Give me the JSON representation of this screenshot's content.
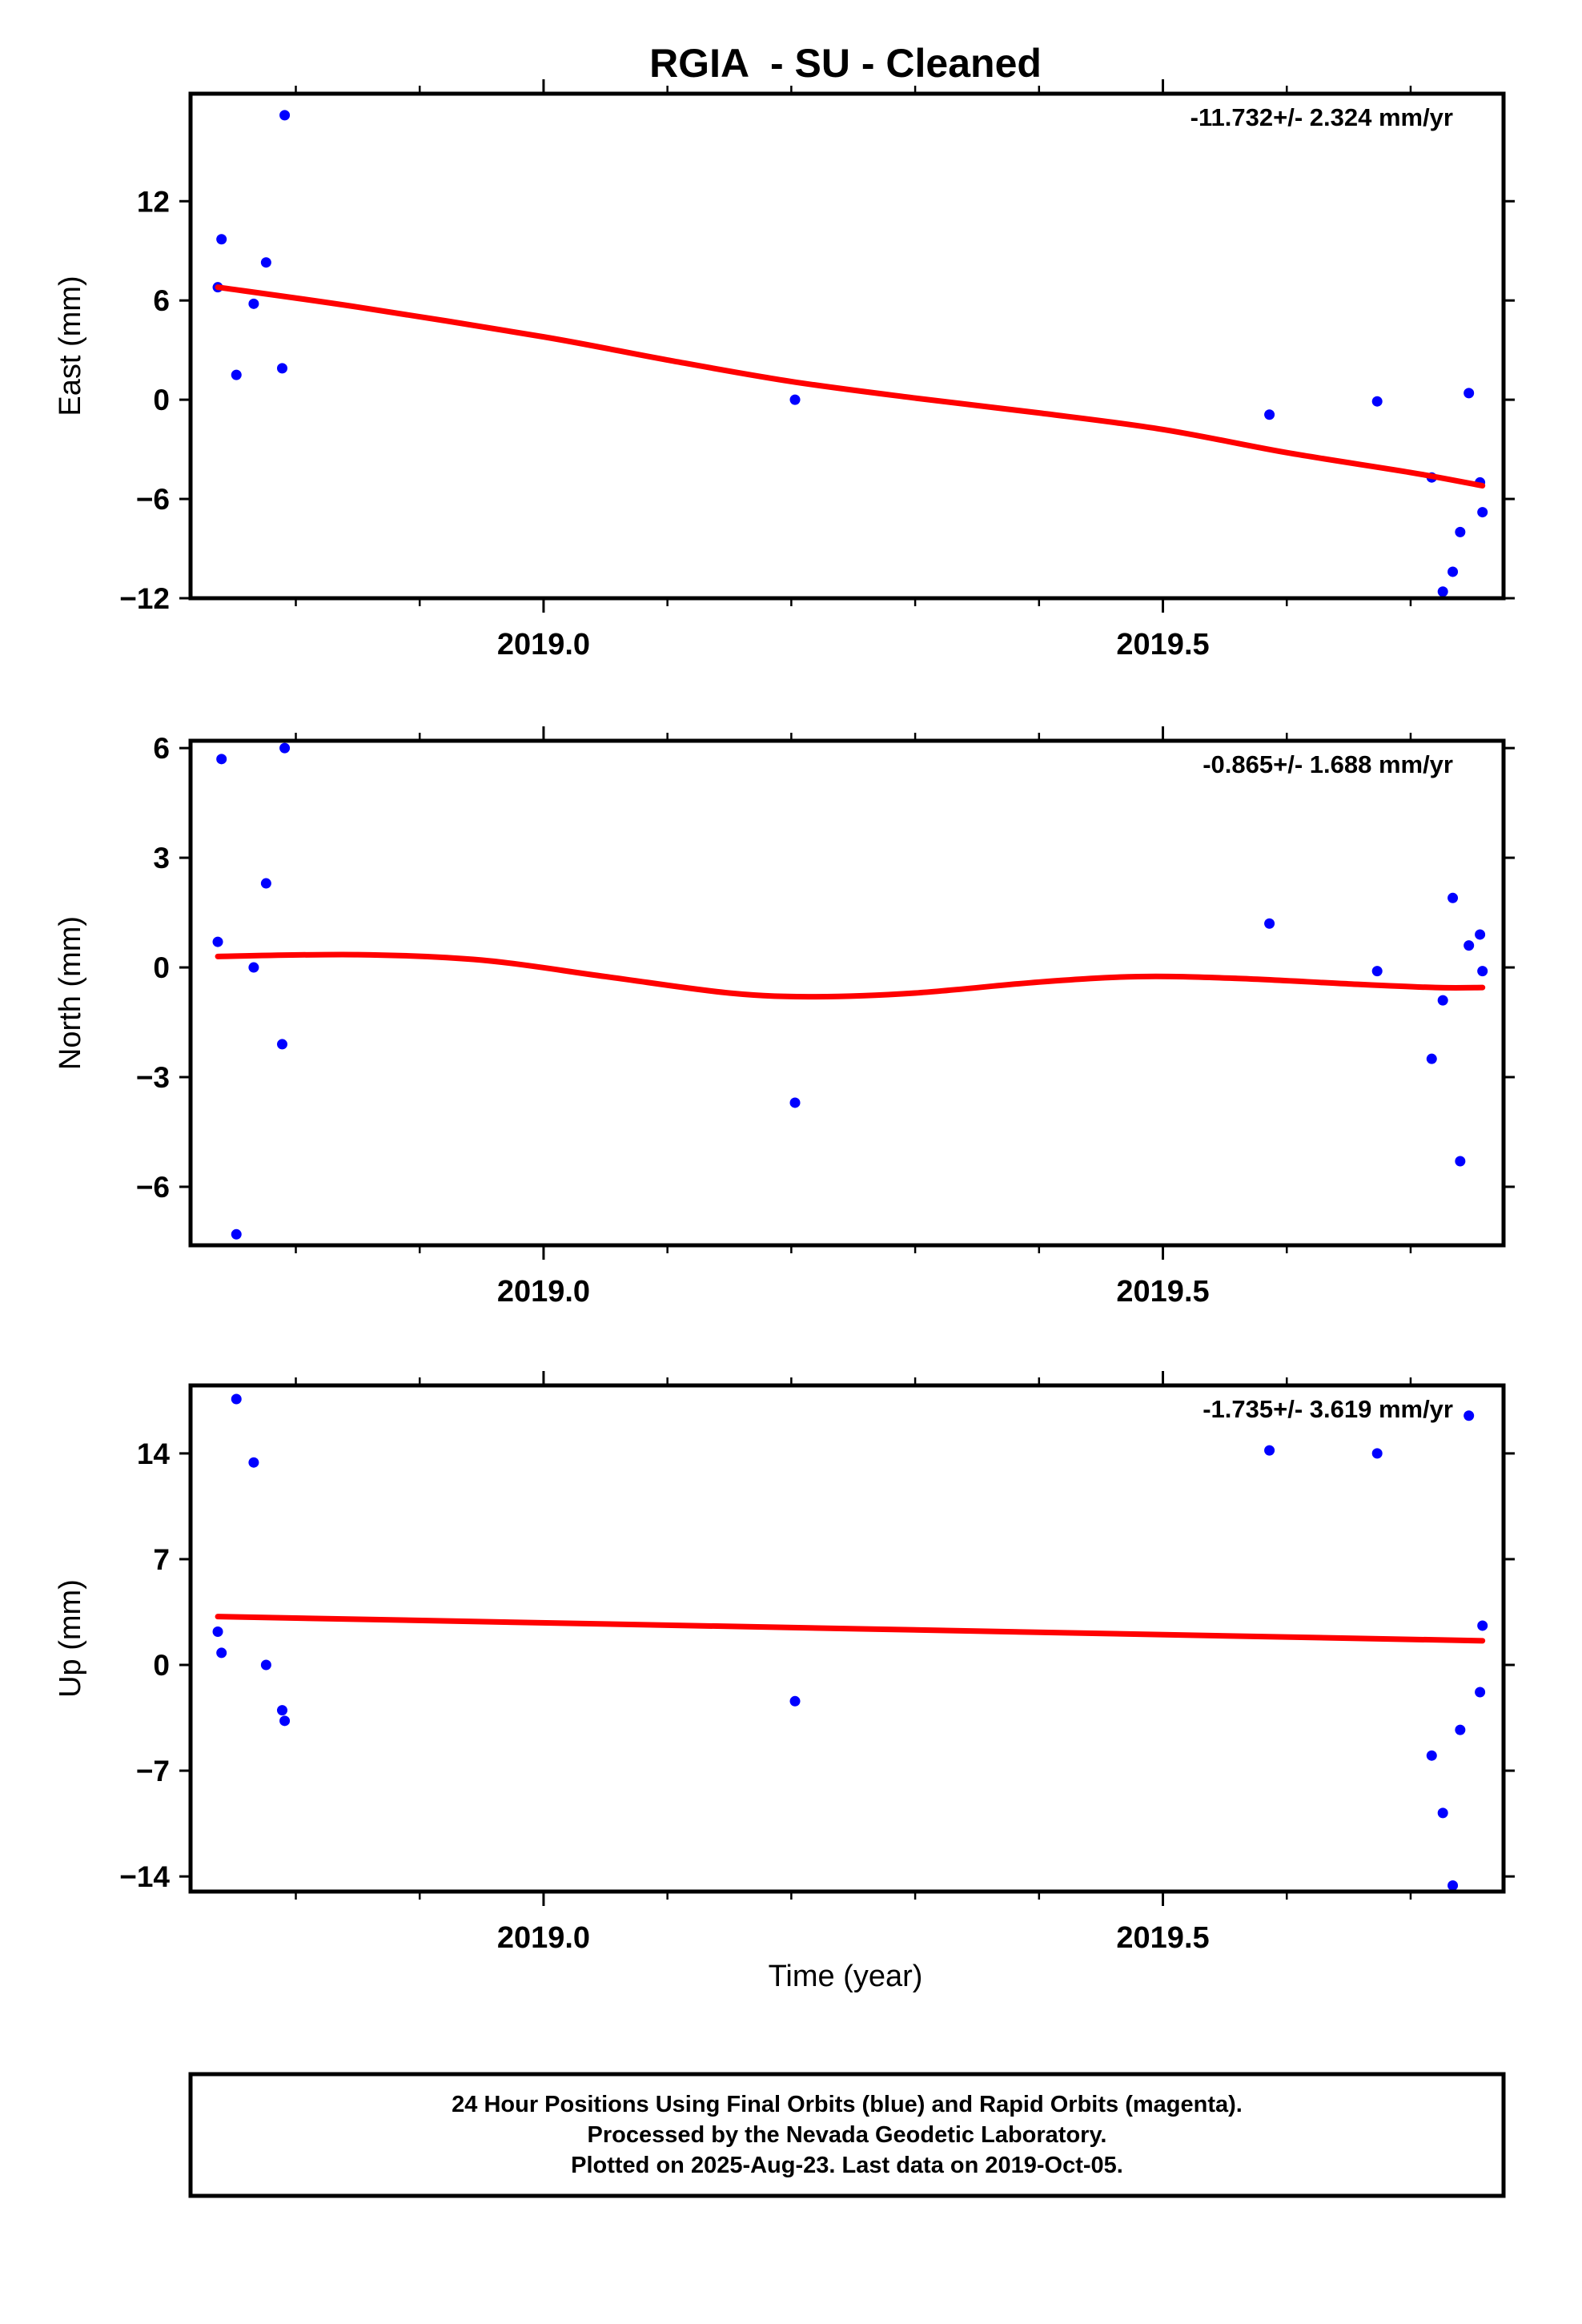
{
  "title": "RGIA  - SU - Cleaned",
  "xlabel": "Time (year)",
  "colors": {
    "final_orbits": "#0000ff",
    "rapid_orbits": "#ff00ff",
    "model": "#ff0000",
    "frame": "#000000"
  },
  "footer": {
    "line1": "24 Hour Positions Using Final Orbits (blue) and Rapid Orbits (magenta).",
    "line2": "Processed by the Nevada Geodetic Laboratory.",
    "line3": "Plotted on 2025-Aug-23. Last data on 2019-Oct-05."
  },
  "chart_data": [
    {
      "type": "scatter",
      "ylabel": "East (mm)",
      "rate_text": "-11.732+/- 2.324 mm/yr",
      "xlim": [
        2018.715,
        2019.775
      ],
      "ylim": [
        -12,
        18.5
      ],
      "yticks": [
        12,
        6,
        0,
        -6,
        -12
      ],
      "ytick_labels": [
        "12",
        "6",
        "0",
        "−6",
        "−12"
      ],
      "xticks": [
        2019.0,
        2019.5
      ],
      "xtick_labels": [
        "2019.0",
        "2019.5"
      ],
      "x_minor": [
        2018.8,
        2018.9,
        2019.1,
        2019.2,
        2019.3,
        2019.4,
        2019.6,
        2019.7
      ],
      "points": {
        "x": [
          2018.737,
          2018.74,
          2018.752,
          2018.766,
          2018.776,
          2018.789,
          2018.791,
          2019.203,
          2019.586,
          2019.673,
          2019.717,
          2019.726,
          2019.734,
          2019.74,
          2019.747,
          2019.756,
          2019.758
        ],
        "y": [
          6.8,
          9.7,
          1.5,
          5.8,
          8.3,
          1.9,
          17.2,
          0.0,
          -0.9,
          -0.1,
          -4.7,
          -11.6,
          -10.4,
          -8.0,
          0.4,
          -5.0,
          -6.8
        ]
      },
      "model": {
        "x": [
          2018.737,
          2018.85,
          2019.0,
          2019.1,
          2019.2,
          2019.3,
          2019.4,
          2019.5,
          2019.6,
          2019.7,
          2019.758
        ],
        "y": [
          6.8,
          5.6,
          3.8,
          2.4,
          1.1,
          0.1,
          -0.8,
          -1.8,
          -3.2,
          -4.4,
          -5.2
        ]
      }
    },
    {
      "type": "scatter",
      "ylabel": "North (mm)",
      "rate_text": "-0.865+/- 1.688 mm/yr",
      "xlim": [
        2018.715,
        2019.775
      ],
      "ylim": [
        -7.6,
        6.2
      ],
      "yticks": [
        6,
        3,
        0,
        -3,
        -6
      ],
      "ytick_labels": [
        "6",
        "3",
        "0",
        "−3",
        "−6"
      ],
      "xticks": [
        2019.0,
        2019.5
      ],
      "xtick_labels": [
        "2019.0",
        "2019.5"
      ],
      "x_minor": [
        2018.8,
        2018.9,
        2019.1,
        2019.2,
        2019.3,
        2019.4,
        2019.6,
        2019.7
      ],
      "points": {
        "x": [
          2018.737,
          2018.74,
          2018.752,
          2018.766,
          2018.776,
          2018.789,
          2018.791,
          2019.203,
          2019.586,
          2019.673,
          2019.717,
          2019.726,
          2019.734,
          2019.74,
          2019.747,
          2019.756,
          2019.758
        ],
        "y": [
          0.7,
          5.7,
          -7.3,
          0.0,
          2.3,
          -2.1,
          6.0,
          -3.7,
          1.2,
          -0.1,
          -2.5,
          -0.9,
          1.9,
          -5.3,
          0.6,
          0.9,
          -0.1
        ]
      },
      "model": {
        "x": [
          2018.737,
          2018.85,
          2018.95,
          2019.05,
          2019.15,
          2019.22,
          2019.3,
          2019.4,
          2019.48,
          2019.56,
          2019.65,
          2019.72,
          2019.758
        ],
        "y": [
          0.3,
          0.35,
          0.2,
          -0.25,
          -0.7,
          -0.8,
          -0.7,
          -0.4,
          -0.25,
          -0.3,
          -0.45,
          -0.55,
          -0.55
        ]
      }
    },
    {
      "type": "scatter",
      "ylabel": "Up (mm)",
      "rate_text": "-1.735+/- 3.619 mm/yr",
      "xlim": [
        2018.715,
        2019.775
      ],
      "ylim": [
        -15,
        18.5
      ],
      "yticks": [
        14,
        7,
        0,
        -7,
        -14
      ],
      "ytick_labels": [
        "14",
        "7",
        "0",
        "−7",
        "−14"
      ],
      "xticks": [
        2019.0,
        2019.5
      ],
      "xtick_labels": [
        "2019.0",
        "2019.5"
      ],
      "x_minor": [
        2018.8,
        2018.9,
        2019.1,
        2019.2,
        2019.3,
        2019.4,
        2019.6,
        2019.7
      ],
      "points": {
        "x": [
          2018.737,
          2018.74,
          2018.752,
          2018.766,
          2018.776,
          2018.789,
          2018.791,
          2019.203,
          2019.586,
          2019.673,
          2019.717,
          2019.726,
          2019.734,
          2019.74,
          2019.747,
          2019.756,
          2019.758
        ],
        "y": [
          2.2,
          0.8,
          17.6,
          13.4,
          0.0,
          -3.0,
          -3.7,
          -2.4,
          14.2,
          14.0,
          -6.0,
          -9.8,
          -14.6,
          -4.3,
          16.5,
          -1.8,
          2.6
        ]
      },
      "model": {
        "x": [
          2018.737,
          2019.758
        ],
        "y": [
          3.2,
          1.6
        ]
      }
    }
  ]
}
